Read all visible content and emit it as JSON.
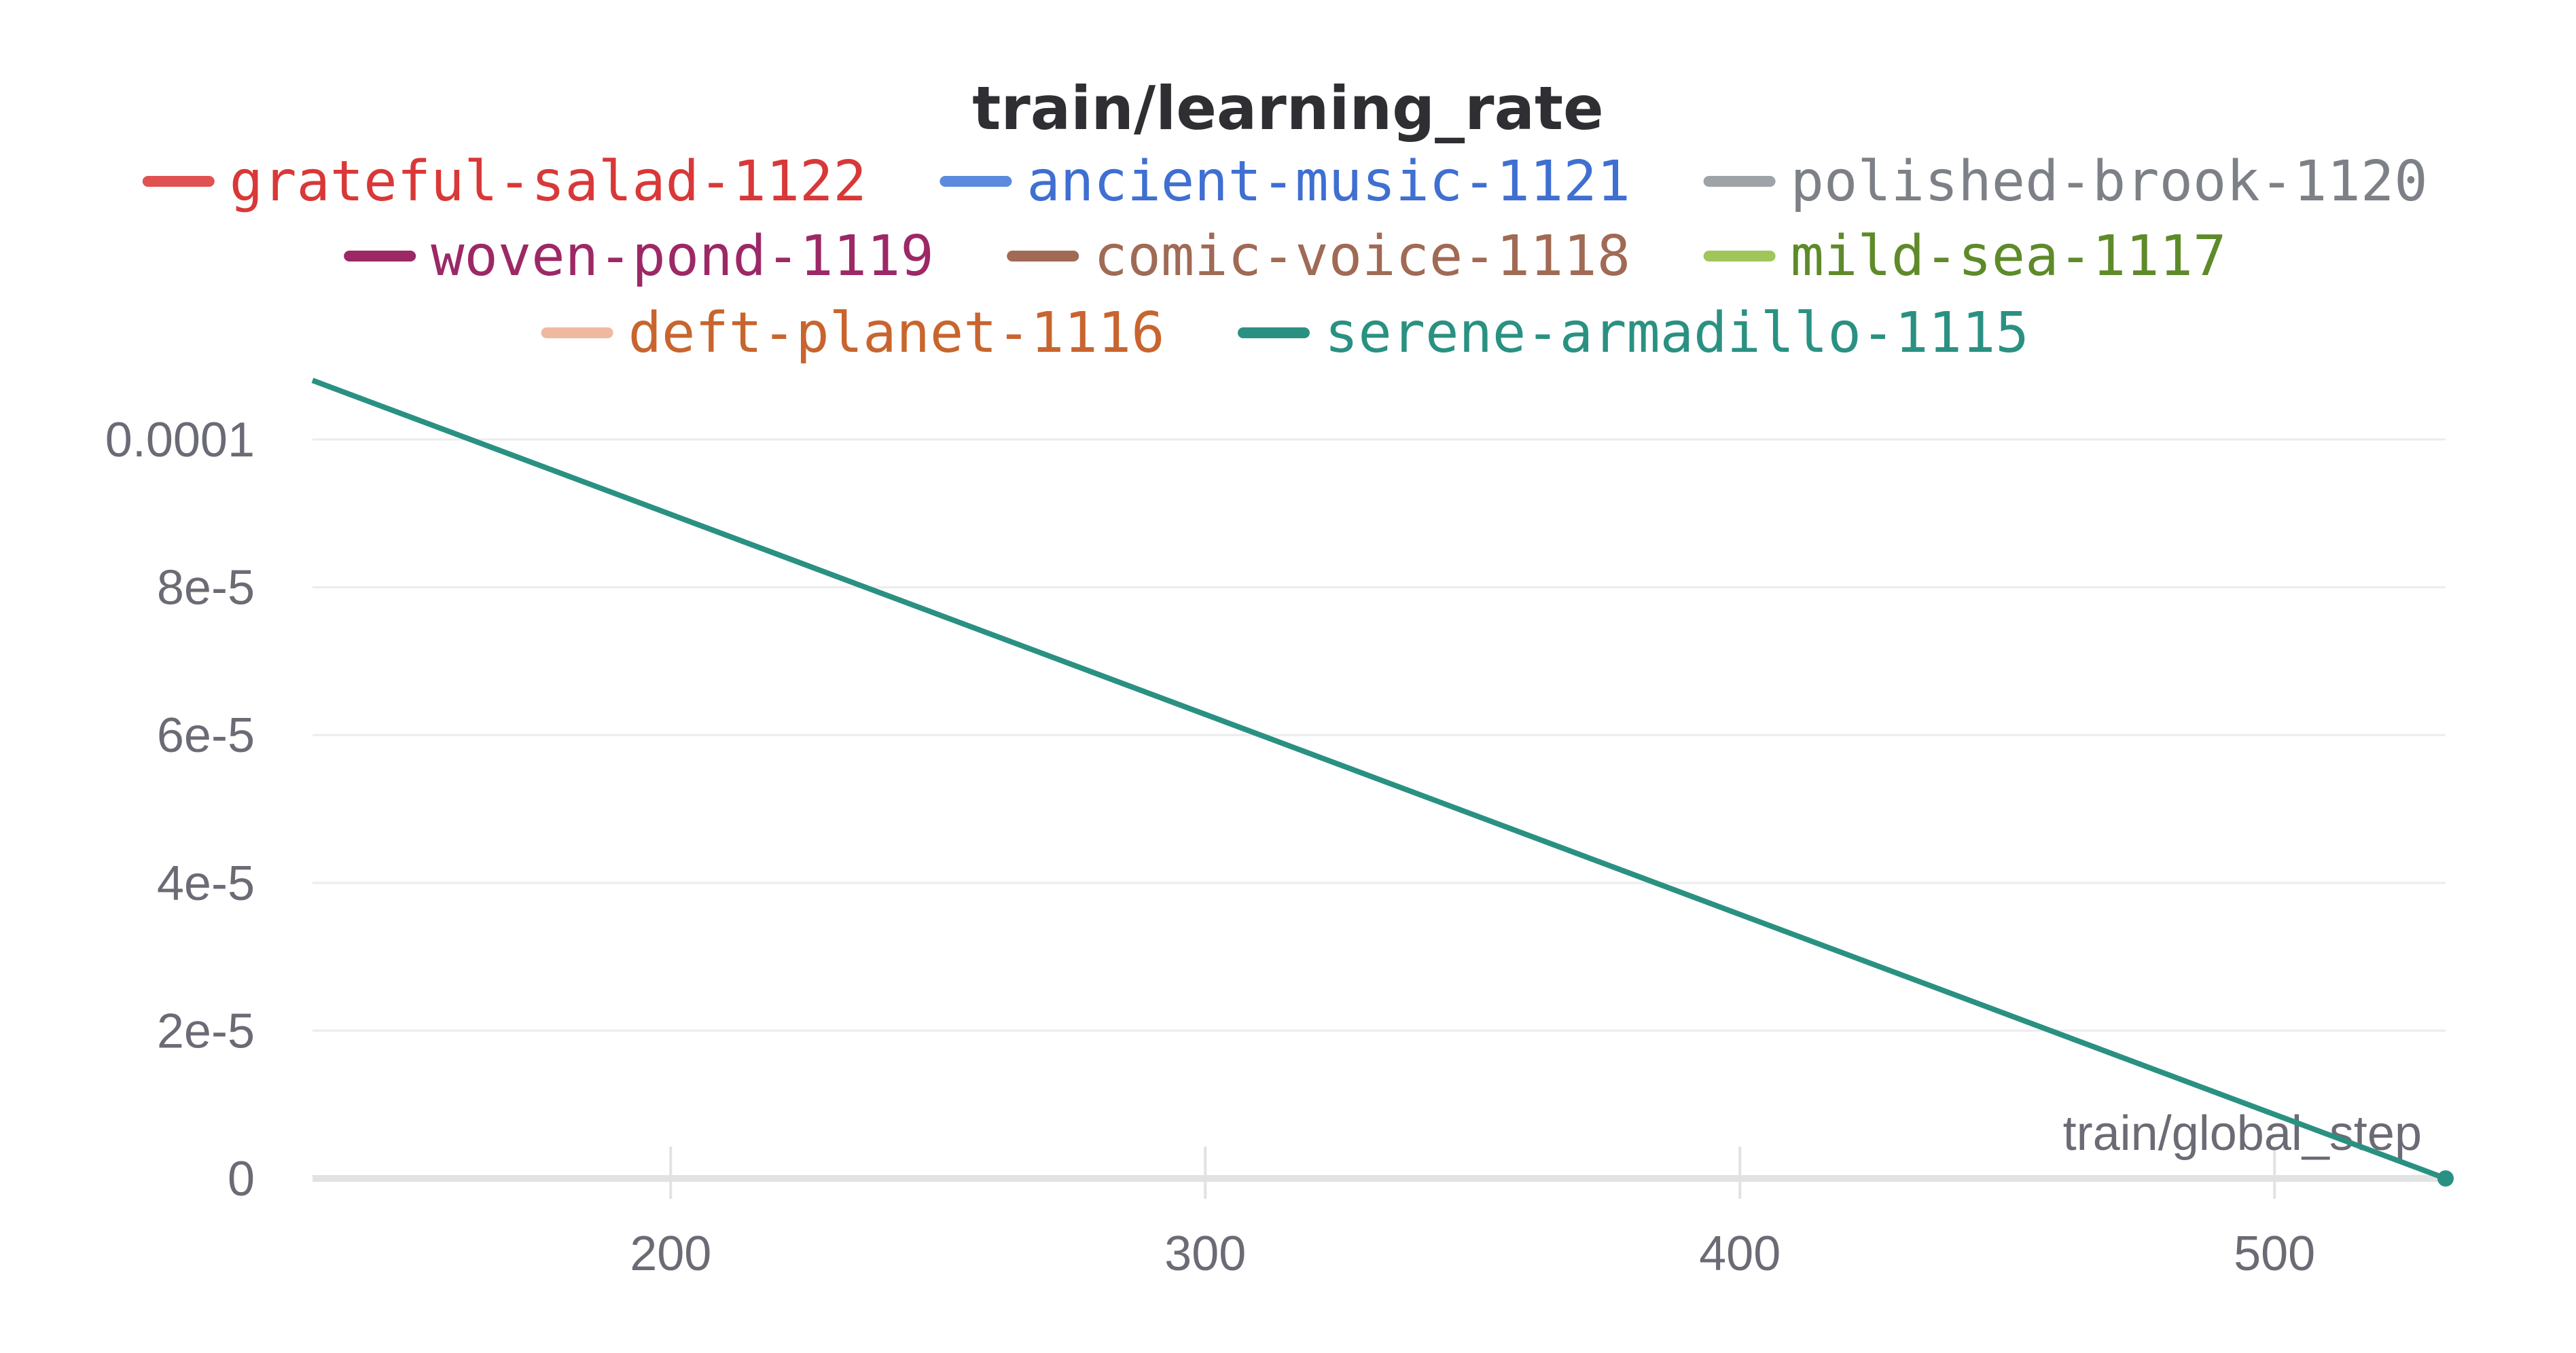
{
  "chart_data": {
    "type": "line",
    "title": "train/learning_rate",
    "xlabel": "train/global_step",
    "ylabel": "",
    "xlim": [
      133,
      532
    ],
    "ylim": [
      0,
      0.000108
    ],
    "x_ticks": [
      200,
      300,
      400,
      500
    ],
    "x_tick_labels": [
      "200",
      "300",
      "400",
      "500"
    ],
    "y_ticks": [
      0,
      2e-05,
      4e-05,
      6e-05,
      8e-05,
      0.0001
    ],
    "y_tick_labels": [
      "0",
      "2e-5",
      "4e-5",
      "6e-5",
      "8e-5",
      "0.0001"
    ],
    "grid": true,
    "legend_position": "top-center",
    "legend": [
      {
        "name": "grateful-salad-1122",
        "color": "#e05252",
        "text_color": "#d93838"
      },
      {
        "name": "ancient-music-1121",
        "color": "#5b8bdf",
        "text_color": "#3f6fd1"
      },
      {
        "name": "polished-brook-1120",
        "color": "#9ea3a8",
        "text_color": "#7d8187"
      },
      {
        "name": "woven-pond-1119",
        "color": "#9c2866",
        "text_color": "#9c2866"
      },
      {
        "name": "comic-voice-1118",
        "color": "#a06a55",
        "text_color": "#a06a55"
      },
      {
        "name": "mild-sea-1117",
        "color": "#a0c65a",
        "text_color": "#5f8a2a"
      },
      {
        "name": "deft-planet-1116",
        "color": "#efb9a0",
        "text_color": "#c8652e"
      },
      {
        "name": "serene-armadillo-1115",
        "color": "#2a9182",
        "text_color": "#2a9182"
      }
    ],
    "series": [
      {
        "name": "serene-armadillo-1115",
        "color": "#2a9182",
        "x": [
          133,
          532
        ],
        "y": [
          0.000108,
          0
        ],
        "end_marker": true
      }
    ]
  }
}
